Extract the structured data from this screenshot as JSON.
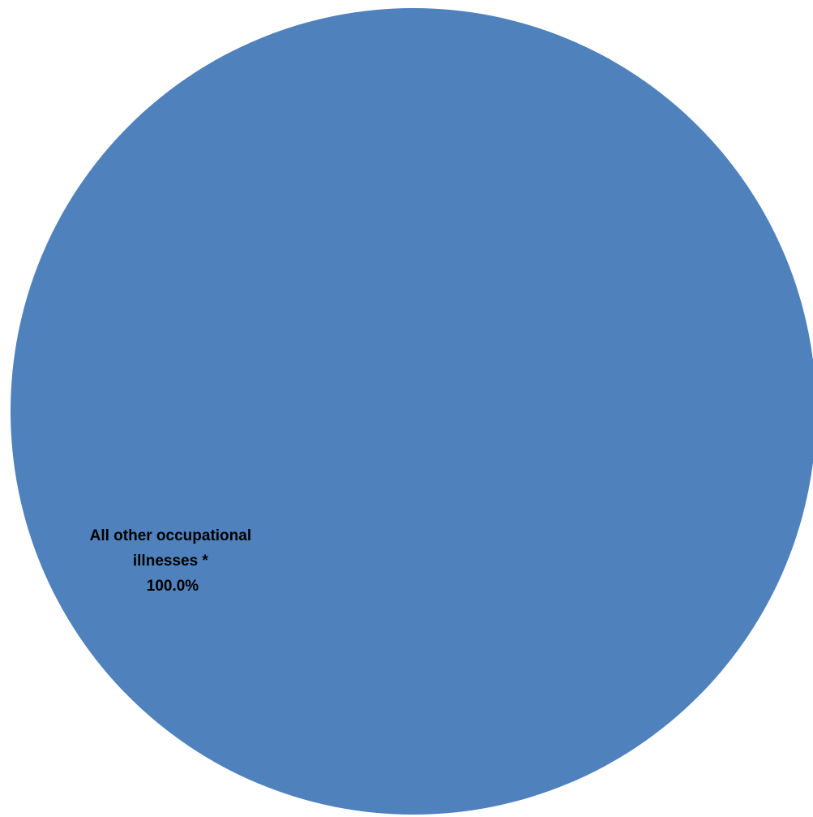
{
  "chart_data": {
    "type": "pie",
    "slices": [
      {
        "label_lines": [
          "All other occupational",
          "illnesses *"
        ],
        "value_label": "100.0%",
        "value": 100.0,
        "color": "#4f81bd"
      }
    ]
  }
}
